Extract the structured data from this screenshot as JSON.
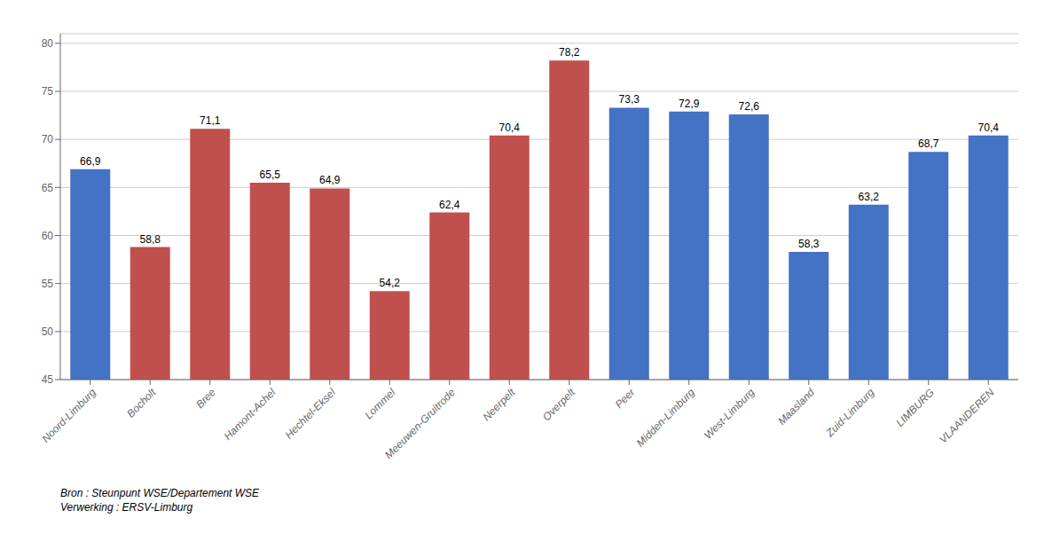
{
  "chart_data": {
    "type": "bar",
    "categories": [
      "Noord-Limburg",
      "Bocholt",
      "Bree",
      "Hamont-Achel",
      "Hechtel-Eksel",
      "Lommel",
      "Meeuwen-Gruitrode",
      "Neerpelt",
      "Overpelt",
      "Peer",
      "Midden-Limburg",
      "West-Limburg",
      "Maasland",
      "Zuid-Limburg",
      "LIMBURG",
      "VLAANDEREN"
    ],
    "values": [
      66.9,
      58.8,
      71.1,
      65.5,
      64.9,
      54.2,
      62.4,
      70.4,
      78.2,
      73.3,
      72.9,
      72.6,
      58.3,
      63.2,
      68.7,
      70.4
    ],
    "value_labels": [
      "66,9",
      "58,8",
      "71,1",
      "65,5",
      "64,9",
      "54,2",
      "62,4",
      "70,4",
      "78,2",
      "73,3",
      "72,9",
      "72,6",
      "58,3",
      "63,2",
      "68,7",
      "70,4"
    ],
    "data_labels": true,
    "colors": [
      "#4472C4",
      "#C0504D",
      "#C0504D",
      "#C0504D",
      "#C0504D",
      "#C0504D",
      "#C0504D",
      "#C0504D",
      "#C0504D",
      "#4472C4",
      "#4472C4",
      "#4472C4",
      "#4472C4",
      "#4472C4",
      "#4472C4",
      "#4472C4"
    ],
    "ylim": [
      45,
      81
    ],
    "yticks": [
      45,
      50,
      55,
      60,
      65,
      70,
      75,
      80
    ],
    "grid": true,
    "annotations": [
      "Bron : Steunpunt WSE/Departement WSE",
      "Verwerking : ERSV-Limburg"
    ]
  }
}
